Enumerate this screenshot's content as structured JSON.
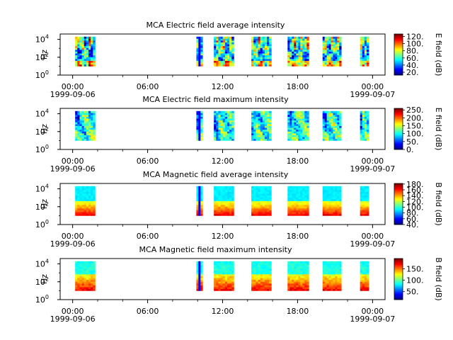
{
  "chart_data": [
    {
      "type": "heatmap",
      "title": "MCA  Electric field average intensity",
      "ylabel": "Hz",
      "y_scale": "log",
      "y_ticks": [
        {
          "base": "10",
          "exp": "0"
        },
        {
          "base": "10",
          "exp": "2"
        },
        {
          "base": "10",
          "exp": "4"
        }
      ],
      "x_ticks": [
        {
          "time": "00:00",
          "date": "1999-09-06"
        },
        {
          "time": "06:00",
          "date": ""
        },
        {
          "time": "12:00",
          "date": ""
        },
        {
          "time": "18:00",
          "date": ""
        },
        {
          "time": "00:00",
          "date": "1999-09-07"
        }
      ],
      "x_range_hours": [
        -1,
        25
      ],
      "y_range_exp": [
        0,
        4.6
      ],
      "data_freq_range_exp": [
        1,
        4.3
      ],
      "segments_hours": [
        [
          0.2,
          1.8
        ],
        [
          9.9,
          10.4
        ],
        [
          11.3,
          12.9
        ],
        [
          14.3,
          15.9
        ],
        [
          17.2,
          18.9
        ],
        [
          20.0,
          21.5
        ],
        [
          23.0,
          23.7
        ]
      ],
      "pattern": "avg_e",
      "seed": 11,
      "colorbar": {
        "label": "E field (dB)",
        "min": 12,
        "max": 127,
        "ticks": [
          "20.",
          "40.",
          "60.",
          "80.",
          "100.",
          "120."
        ]
      }
    },
    {
      "type": "heatmap",
      "title": "MCA  Electric field maximum intensity",
      "ylabel": "Hz",
      "y_scale": "log",
      "y_ticks": [
        {
          "base": "10",
          "exp": "0"
        },
        {
          "base": "10",
          "exp": "2"
        },
        {
          "base": "10",
          "exp": "4"
        }
      ],
      "x_ticks": [
        {
          "time": "00:00",
          "date": "1999-09-06"
        },
        {
          "time": "06:00",
          "date": ""
        },
        {
          "time": "12:00",
          "date": ""
        },
        {
          "time": "18:00",
          "date": ""
        },
        {
          "time": "00:00",
          "date": "1999-09-07"
        }
      ],
      "x_range_hours": [
        -1,
        25
      ],
      "y_range_exp": [
        0,
        4.6
      ],
      "data_freq_range_exp": [
        1,
        4.3
      ],
      "segments_hours": [
        [
          0.2,
          1.8
        ],
        [
          9.9,
          10.4
        ],
        [
          11.3,
          12.9
        ],
        [
          14.3,
          15.9
        ],
        [
          17.2,
          18.9
        ],
        [
          20.0,
          21.5
        ],
        [
          23.0,
          23.7
        ]
      ],
      "pattern": "max_e",
      "seed": 23,
      "colorbar": {
        "label": "E field (dB)",
        "min": 0,
        "max": 260,
        "ticks": [
          "0.",
          "50.",
          "100.",
          "150.",
          "200.",
          "250."
        ]
      }
    },
    {
      "type": "heatmap",
      "title": "MCA  Magnetic field average intensity",
      "ylabel": "Hz",
      "y_scale": "log",
      "y_ticks": [
        {
          "base": "10",
          "exp": "0"
        },
        {
          "base": "10",
          "exp": "2"
        },
        {
          "base": "10",
          "exp": "4"
        }
      ],
      "x_ticks": [
        {
          "time": "00:00",
          "date": "1999-09-06"
        },
        {
          "time": "06:00",
          "date": ""
        },
        {
          "time": "12:00",
          "date": ""
        },
        {
          "time": "18:00",
          "date": ""
        },
        {
          "time": "00:00",
          "date": "1999-09-07"
        }
      ],
      "x_range_hours": [
        -1,
        25
      ],
      "y_range_exp": [
        0,
        4.6
      ],
      "data_freq_range_exp": [
        1,
        4.3
      ],
      "segments_hours": [
        [
          0.2,
          1.8
        ],
        [
          9.9,
          10.4
        ],
        [
          11.3,
          12.9
        ],
        [
          14.3,
          15.9
        ],
        [
          17.2,
          18.9
        ],
        [
          20.0,
          21.5
        ],
        [
          23.0,
          23.7
        ]
      ],
      "pattern": "avg_b",
      "seed": 37,
      "colorbar": {
        "label": "B field (dB)",
        "min": 40,
        "max": 182,
        "ticks": [
          "40.",
          "60.",
          "80.",
          "100.",
          "120.",
          "140.",
          "160.",
          "180."
        ]
      }
    },
    {
      "type": "heatmap",
      "title": "MCA  Magnetic field maximum intensity",
      "ylabel": "Hz",
      "y_scale": "log",
      "y_ticks": [
        {
          "base": "10",
          "exp": "0"
        },
        {
          "base": "10",
          "exp": "2"
        },
        {
          "base": "10",
          "exp": "4"
        }
      ],
      "x_ticks": [
        {
          "time": "00:00",
          "date": "1999-09-06"
        },
        {
          "time": "06:00",
          "date": ""
        },
        {
          "time": "12:00",
          "date": ""
        },
        {
          "time": "18:00",
          "date": ""
        },
        {
          "time": "00:00",
          "date": "1999-09-07"
        }
      ],
      "x_range_hours": [
        -1,
        25
      ],
      "y_range_exp": [
        0,
        4.6
      ],
      "data_freq_range_exp": [
        1,
        4.3
      ],
      "segments_hours": [
        [
          0.2,
          1.8
        ],
        [
          9.9,
          10.4
        ],
        [
          11.3,
          12.9
        ],
        [
          14.3,
          15.9
        ],
        [
          17.2,
          18.9
        ],
        [
          20.0,
          21.5
        ],
        [
          23.0,
          23.7
        ]
      ],
      "pattern": "max_b",
      "seed": 53,
      "colorbar": {
        "label": "B field (dB)",
        "min": 15,
        "max": 195,
        "ticks": [
          "50.",
          "100.",
          "150."
        ]
      }
    }
  ]
}
